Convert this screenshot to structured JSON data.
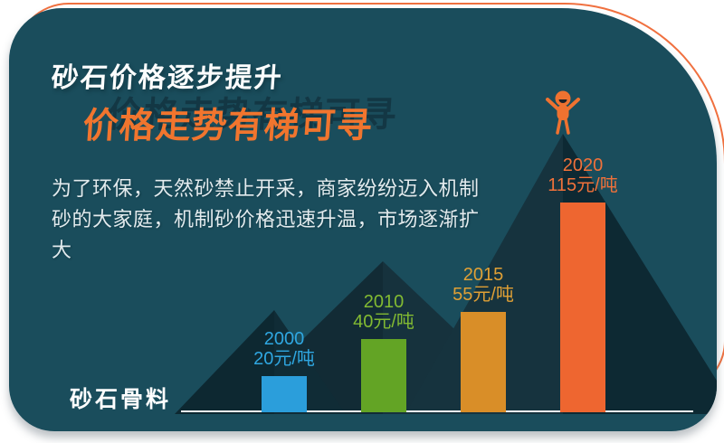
{
  "card": {
    "bg_color": "#1a4d5c",
    "outline_color": "#f0703f"
  },
  "header": {
    "subtitle": "砂石价格逐步提升",
    "subtitle_color": "#fcfdfd",
    "title": "价格走势有梯可寻",
    "title_color": "#f1752e"
  },
  "description": {
    "text": "为了环保，天然砂禁止开采，商家纷纷迈入机制砂的大家庭，机制砂价格迅速升温，市场逐渐扩大"
  },
  "footer": {
    "brand": "砂石骨料"
  },
  "chart_data": {
    "type": "bar",
    "title": "",
    "categories": [
      "2000",
      "2010",
      "2015",
      "2020"
    ],
    "values": [
      20,
      40,
      55,
      115
    ],
    "unit": "元/吨",
    "value_labels": [
      "20元/吨",
      "40元/吨",
      "55元/吨",
      "115元/吨"
    ],
    "bar_colors": [
      "#2b9edb",
      "#63a425",
      "#d98e28",
      "#ee6630"
    ],
    "label_colors": [
      "#2fa7e1",
      "#82ba32",
      "#e0a035",
      "#f0713a"
    ],
    "ylim": [
      0,
      120
    ],
    "gridlines": false,
    "legend": "none",
    "baseline_color": "#eef4f5",
    "annotations": [
      "橙色小人站在最高峰顶"
    ]
  },
  "decor": {
    "person_color": "#ef7230"
  }
}
